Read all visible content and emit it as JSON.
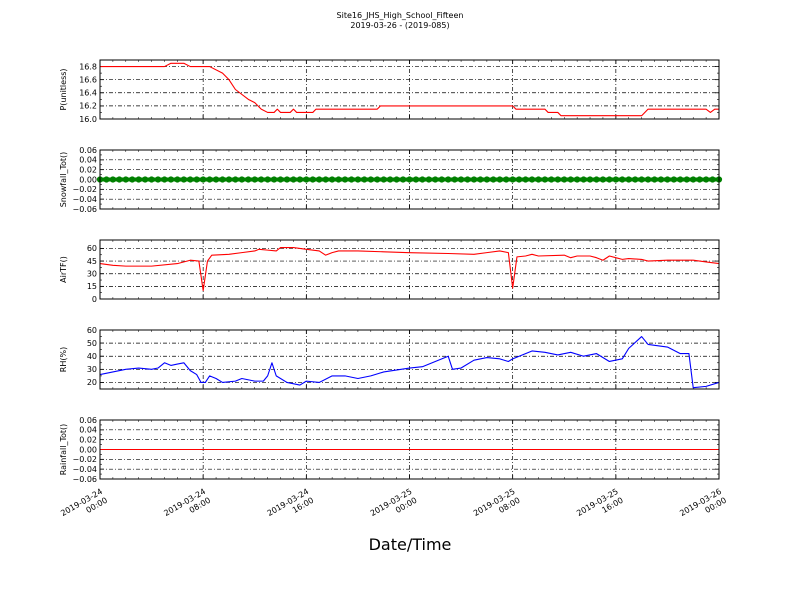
{
  "chart_data": {
    "type": "line",
    "title": "Site16_JHS_High_School_Fifteen",
    "subtitle": "2019-03-26 - (2019-085)",
    "xlabel": "Date/Time",
    "x_range": [
      "2019-03-24 00:00",
      "2019-03-26 00:00"
    ],
    "x_ticks": [
      {
        "time": "2019-03-24 00:00",
        "label": [
          "2019-03-24",
          "00:00"
        ]
      },
      {
        "time": "2019-03-24 08:00",
        "label": [
          "2019-03-24",
          "08:00"
        ]
      },
      {
        "time": "2019-03-24 16:00",
        "label": [
          "2019-03-24",
          "16:00"
        ]
      },
      {
        "time": "2019-03-25 00:00",
        "label": [
          "2019-03-25",
          "00:00"
        ]
      },
      {
        "time": "2019-03-25 08:00",
        "label": [
          "2019-03-25",
          "08:00"
        ]
      },
      {
        "time": "2019-03-25 16:00",
        "label": [
          "2019-03-25",
          "16:00"
        ]
      },
      {
        "time": "2019-03-26 00:00",
        "label": [
          "2019-03-26",
          "00:00"
        ]
      }
    ],
    "grid": true,
    "panels": [
      {
        "ylabel": "P(unitless)",
        "ylim": [
          16.0,
          16.9
        ],
        "yticks": [
          16.0,
          16.2,
          16.4,
          16.6,
          16.8
        ],
        "tick_labels": [
          "16.0",
          "16.2",
          "16.4",
          "16.6",
          "16.8"
        ],
        "color": "#ff0000",
        "marker": false,
        "points": [
          [
            "2019-03-24 00:00",
            16.8
          ],
          [
            "2019-03-24 05:00",
            16.8
          ],
          [
            "2019-03-24 05:30",
            16.85
          ],
          [
            "2019-03-24 06:30",
            16.85
          ],
          [
            "2019-03-24 07:00",
            16.8
          ],
          [
            "2019-03-24 08:30",
            16.8
          ],
          [
            "2019-03-24 09:30",
            16.7
          ],
          [
            "2019-03-24 10:00",
            16.6
          ],
          [
            "2019-03-24 10:30",
            16.45
          ],
          [
            "2019-03-24 11:30",
            16.3
          ],
          [
            "2019-03-24 12:00",
            16.25
          ],
          [
            "2019-03-24 12:30",
            16.15
          ],
          [
            "2019-03-24 13:00",
            16.1
          ],
          [
            "2019-03-24 13:30",
            16.1
          ],
          [
            "2019-03-24 13:45",
            16.15
          ],
          [
            "2019-03-24 14:00",
            16.1
          ],
          [
            "2019-03-24 14:45",
            16.1
          ],
          [
            "2019-03-24 15:00",
            16.15
          ],
          [
            "2019-03-24 15:15",
            16.1
          ],
          [
            "2019-03-24 16:00",
            16.1
          ],
          [
            "2019-03-24 16:30",
            16.1
          ],
          [
            "2019-03-24 16:45",
            16.15
          ],
          [
            "2019-03-24 21:30",
            16.15
          ],
          [
            "2019-03-24 21:45",
            16.2
          ],
          [
            "2019-03-25 08:00",
            16.2
          ],
          [
            "2019-03-25 08:15",
            16.15
          ],
          [
            "2019-03-25 10:30",
            16.15
          ],
          [
            "2019-03-25 10:45",
            16.1
          ],
          [
            "2019-03-25 11:30",
            16.1
          ],
          [
            "2019-03-25 11:45",
            16.05
          ],
          [
            "2019-03-25 18:00",
            16.05
          ],
          [
            "2019-03-25 18:30",
            16.15
          ],
          [
            "2019-03-25 23:00",
            16.15
          ],
          [
            "2019-03-25 23:20",
            16.1
          ],
          [
            "2019-03-25 23:40",
            16.15
          ],
          [
            "2019-03-26 00:00",
            16.15
          ]
        ]
      },
      {
        "ylabel": "Snowfall_Tot()",
        "ylim": [
          -0.06,
          0.06
        ],
        "yticks": [
          -0.06,
          -0.04,
          -0.02,
          0.0,
          0.02,
          0.04,
          0.06
        ],
        "tick_labels": [
          "−0.06",
          "−0.04",
          "−0.02",
          "0.00",
          "0.02",
          "0.04",
          "0.06"
        ],
        "color": "#008000",
        "marker": true,
        "points": [
          [
            "2019-03-24 00:00",
            0.0
          ],
          [
            "2019-03-26 00:00",
            0.0
          ]
        ]
      },
      {
        "ylabel": "AirTF()",
        "ylim": [
          0,
          70
        ],
        "yticks": [
          0,
          15,
          30,
          45,
          60
        ],
        "tick_labels": [
          "0",
          "15",
          "30",
          "45",
          "60"
        ],
        "color": "#ff0000",
        "marker": false,
        "points": [
          [
            "2019-03-24 00:00",
            42
          ],
          [
            "2019-03-24 01:00",
            40
          ],
          [
            "2019-03-24 02:00",
            39
          ],
          [
            "2019-03-24 04:00",
            39
          ],
          [
            "2019-03-24 06:00",
            42
          ],
          [
            "2019-03-24 07:00",
            46
          ],
          [
            "2019-03-24 07:40",
            45
          ],
          [
            "2019-03-24 08:00",
            10
          ],
          [
            "2019-03-24 08:20",
            45
          ],
          [
            "2019-03-24 08:40",
            52
          ],
          [
            "2019-03-24 10:00",
            53
          ],
          [
            "2019-03-24 11:00",
            55
          ],
          [
            "2019-03-24 12:00",
            57
          ],
          [
            "2019-03-24 12:20",
            59
          ],
          [
            "2019-03-24 13:00",
            58
          ],
          [
            "2019-03-24 13:40",
            57
          ],
          [
            "2019-03-24 14:00",
            61
          ],
          [
            "2019-03-24 15:00",
            61
          ],
          [
            "2019-03-24 16:00",
            59
          ],
          [
            "2019-03-24 17:00",
            57
          ],
          [
            "2019-03-24 17:30",
            52
          ],
          [
            "2019-03-24 18:00",
            55
          ],
          [
            "2019-03-24 18:30",
            57
          ],
          [
            "2019-03-24 20:00",
            57
          ],
          [
            "2019-03-24 22:00",
            56
          ],
          [
            "2019-03-25 00:00",
            55
          ],
          [
            "2019-03-25 03:00",
            54
          ],
          [
            "2019-03-25 05:00",
            53
          ],
          [
            "2019-03-25 06:00",
            55
          ],
          [
            "2019-03-25 07:00",
            57
          ],
          [
            "2019-03-25 07:40",
            55
          ],
          [
            "2019-03-25 08:00",
            13
          ],
          [
            "2019-03-25 08:20",
            50
          ],
          [
            "2019-03-25 09:00",
            51
          ],
          [
            "2019-03-25 09:30",
            53
          ],
          [
            "2019-03-25 10:00",
            51
          ],
          [
            "2019-03-25 12:00",
            52
          ],
          [
            "2019-03-25 12:30",
            49
          ],
          [
            "2019-03-25 13:00",
            51
          ],
          [
            "2019-03-25 14:00",
            51
          ],
          [
            "2019-03-25 14:30",
            49
          ],
          [
            "2019-03-25 15:00",
            46
          ],
          [
            "2019-03-25 15:30",
            51
          ],
          [
            "2019-03-25 16:00",
            49
          ],
          [
            "2019-03-25 16:30",
            47
          ],
          [
            "2019-03-25 17:00",
            48
          ],
          [
            "2019-03-25 18:00",
            47
          ],
          [
            "2019-03-25 18:30",
            45
          ],
          [
            "2019-03-25 20:00",
            46
          ],
          [
            "2019-03-25 22:00",
            46
          ],
          [
            "2019-03-25 23:00",
            44
          ],
          [
            "2019-03-26 00:00",
            42
          ]
        ]
      },
      {
        "ylabel": "RH(%)",
        "ylim": [
          15,
          60
        ],
        "yticks": [
          20,
          30,
          40,
          50,
          60
        ],
        "tick_labels": [
          "20",
          "30",
          "40",
          "50",
          "60"
        ],
        "color": "#0000ff",
        "marker": false,
        "points": [
          [
            "2019-03-24 00:00",
            26
          ],
          [
            "2019-03-24 01:00",
            28
          ],
          [
            "2019-03-24 02:00",
            30
          ],
          [
            "2019-03-24 03:00",
            31
          ],
          [
            "2019-03-24 04:00",
            30
          ],
          [
            "2019-03-24 04:30",
            31
          ],
          [
            "2019-03-24 05:00",
            35
          ],
          [
            "2019-03-24 05:30",
            33
          ],
          [
            "2019-03-24 06:00",
            34
          ],
          [
            "2019-03-24 06:30",
            35
          ],
          [
            "2019-03-24 07:00",
            29
          ],
          [
            "2019-03-24 07:30",
            26
          ],
          [
            "2019-03-24 07:50",
            20
          ],
          [
            "2019-03-24 08:10",
            20
          ],
          [
            "2019-03-24 08:30",
            25
          ],
          [
            "2019-03-24 09:00",
            23
          ],
          [
            "2019-03-24 09:30",
            20
          ],
          [
            "2019-03-24 10:30",
            21
          ],
          [
            "2019-03-24 11:00",
            23
          ],
          [
            "2019-03-24 12:00",
            21
          ],
          [
            "2019-03-24 12:40",
            21
          ],
          [
            "2019-03-24 13:00",
            25
          ],
          [
            "2019-03-24 13:20",
            35
          ],
          [
            "2019-03-24 13:40",
            25
          ],
          [
            "2019-03-24 14:30",
            20
          ],
          [
            "2019-03-24 15:30",
            18
          ],
          [
            "2019-03-24 16:00",
            21
          ],
          [
            "2019-03-24 17:00",
            20
          ],
          [
            "2019-03-24 18:00",
            25
          ],
          [
            "2019-03-24 19:00",
            25
          ],
          [
            "2019-03-24 20:00",
            23
          ],
          [
            "2019-03-24 21:00",
            25
          ],
          [
            "2019-03-24 22:00",
            28
          ],
          [
            "2019-03-25 00:00",
            31
          ],
          [
            "2019-03-25 01:00",
            32
          ],
          [
            "2019-03-25 02:00",
            36
          ],
          [
            "2019-03-25 03:00",
            40
          ],
          [
            "2019-03-25 03:20",
            30
          ],
          [
            "2019-03-25 04:00",
            31
          ],
          [
            "2019-03-25 05:00",
            37
          ],
          [
            "2019-03-25 06:00",
            39
          ],
          [
            "2019-03-25 07:00",
            38
          ],
          [
            "2019-03-25 07:40",
            36
          ],
          [
            "2019-03-25 08:00",
            38
          ],
          [
            "2019-03-25 09:00",
            42
          ],
          [
            "2019-03-25 09:30",
            44
          ],
          [
            "2019-03-25 10:30",
            43
          ],
          [
            "2019-03-25 11:30",
            41
          ],
          [
            "2019-03-25 12:30",
            43
          ],
          [
            "2019-03-25 13:30",
            40
          ],
          [
            "2019-03-25 14:30",
            42
          ],
          [
            "2019-03-25 15:30",
            36
          ],
          [
            "2019-03-25 16:30",
            38
          ],
          [
            "2019-03-25 17:00",
            46
          ],
          [
            "2019-03-25 18:00",
            55
          ],
          [
            "2019-03-25 18:30",
            49
          ],
          [
            "2019-03-25 20:00",
            47
          ],
          [
            "2019-03-25 21:00",
            42
          ],
          [
            "2019-03-25 21:40",
            42
          ],
          [
            "2019-03-25 22:00",
            16
          ],
          [
            "2019-03-25 23:00",
            17
          ],
          [
            "2019-03-26 00:00",
            20
          ]
        ]
      },
      {
        "ylabel": "Rainfall_Tot()",
        "ylim": [
          -0.06,
          0.06
        ],
        "yticks": [
          -0.06,
          -0.04,
          -0.02,
          0.0,
          0.02,
          0.04,
          0.06
        ],
        "tick_labels": [
          "−0.06",
          "−0.04",
          "−0.02",
          "0.00",
          "0.02",
          "0.04",
          "0.06"
        ],
        "color": "#ff0000",
        "marker": false,
        "points": [
          [
            "2019-03-24 00:00",
            0.0
          ],
          [
            "2019-03-26 00:00",
            0.0
          ]
        ]
      }
    ]
  }
}
